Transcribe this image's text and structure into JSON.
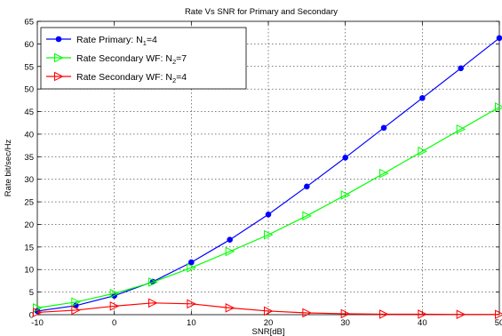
{
  "chart_data": {
    "type": "line",
    "title": "Rate Vs SNR for Primary and Secondary",
    "xlabel": "SNR[dB]",
    "ylabel": "Rate bit/sec/Hz",
    "xlim": [
      -10,
      50
    ],
    "ylim": [
      0,
      65
    ],
    "xticks": [
      -10,
      0,
      10,
      20,
      30,
      40,
      50
    ],
    "yticks": [
      0,
      5,
      10,
      15,
      20,
      25,
      30,
      35,
      40,
      45,
      50,
      55,
      60,
      65
    ],
    "grid": true,
    "legend_position": "top-left",
    "x": [
      -10,
      -5,
      0,
      5,
      10,
      15,
      20,
      25,
      30,
      35,
      40,
      45,
      50
    ],
    "series": [
      {
        "name": "Rate Primary: N1=4",
        "legend_main": "Rate Primary: N",
        "legend_sub": "1",
        "legend_tail": "=4",
        "color": "#0000ff",
        "marker": "dot",
        "values": [
          0.8,
          2.0,
          4.2,
          7.3,
          11.6,
          16.6,
          22.2,
          28.4,
          34.8,
          41.4,
          48.0,
          54.6,
          61.3
        ]
      },
      {
        "name": "Rate Secondary WF: N2=7",
        "legend_main": "Rate Secondary WF: N",
        "legend_sub": "2",
        "legend_tail": "=7",
        "color": "#00ff00",
        "marker": "triangle-right",
        "values": [
          1.5,
          2.8,
          4.7,
          7.2,
          10.4,
          14.0,
          17.7,
          21.9,
          26.5,
          31.3,
          36.2,
          41.1,
          46.0
        ]
      },
      {
        "name": "Rate Secondary WF: N2=4",
        "legend_main": "Rate Secondary WF: N",
        "legend_sub": "2",
        "legend_tail": "=4",
        "color": "#ff0000",
        "marker": "triangle-right",
        "values": [
          0.5,
          1.0,
          1.9,
          2.6,
          2.4,
          1.5,
          0.8,
          0.4,
          0.2,
          0.1,
          0.1,
          0.05,
          0.05
        ]
      }
    ]
  }
}
